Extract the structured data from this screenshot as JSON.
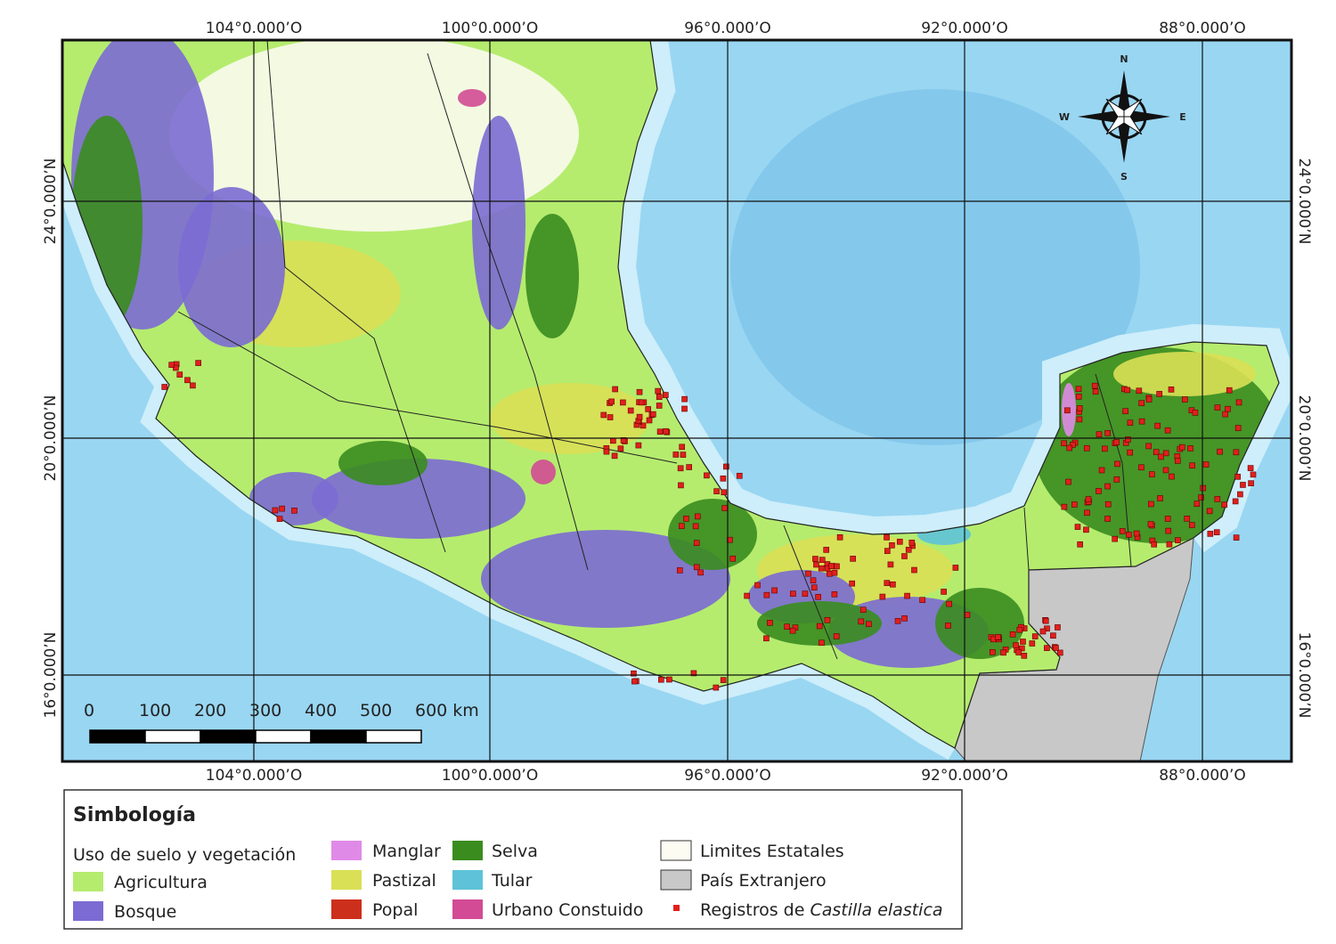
{
  "map": {
    "longitudes": [
      "104°0.000’O",
      "100°0.000’O",
      "96°0.000’O",
      "92°0.000’O",
      "88°0.000’O"
    ],
    "latitudes": [
      "24°0.000’N",
      "20°0.000’N",
      "16°0.000’N"
    ],
    "scale_bar": [
      "0",
      "100",
      "200",
      "300",
      "400",
      "500",
      "600 km"
    ],
    "compass": {
      "n": "N",
      "e": "E",
      "s": "S",
      "w": "W"
    }
  },
  "legend": {
    "title": "Simbología",
    "subtitle": "Uso de suelo y vegetación",
    "items": [
      {
        "label": "Agricultura",
        "color": "#b5ec6e"
      },
      {
        "label": "Bosque",
        "color": "#7b6bd3"
      },
      {
        "label": "Manglar",
        "color": "#e08ae8"
      },
      {
        "label": "Pastizal",
        "color": "#d9e055"
      },
      {
        "label": "Popal",
        "color": "#cc2f1c"
      },
      {
        "label": "Selva",
        "color": "#3a8c1f"
      },
      {
        "label": "Tular",
        "color": "#5ec3d8"
      },
      {
        "label": "Urbano Constuido",
        "color": "#d24b94"
      },
      {
        "label": "Limites Estatales",
        "color": "#fdfcf3"
      },
      {
        "label": "País Extranjero",
        "color": "#c8c8c8"
      }
    ],
    "records_prefix": "Registros de",
    "records_species": "Castilla elastica",
    "records_color": "#e0201d"
  }
}
